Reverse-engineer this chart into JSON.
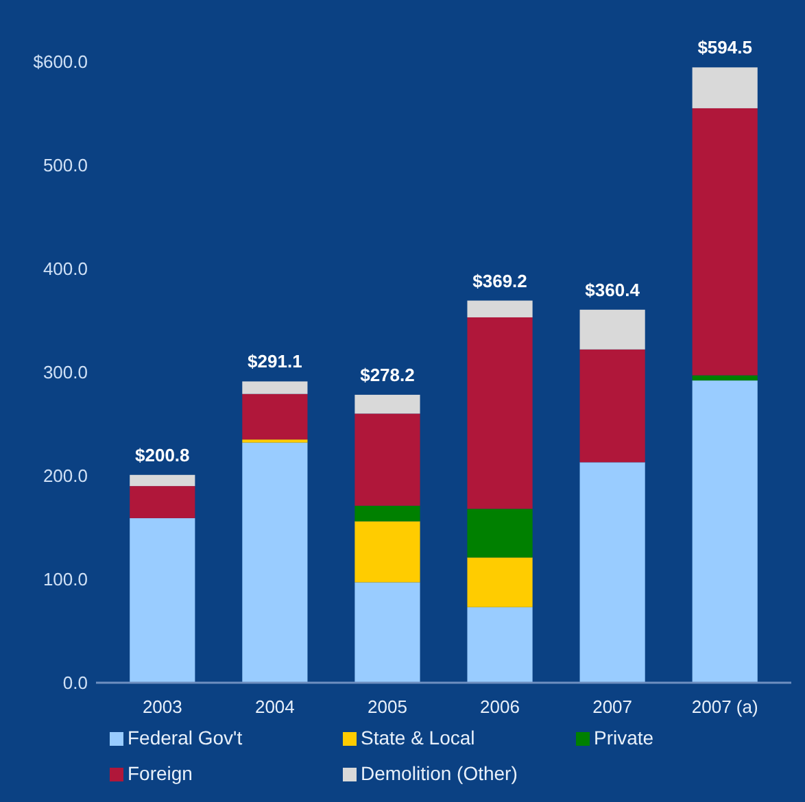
{
  "chart_data": {
    "type": "bar",
    "stacked": true,
    "categories": [
      "2003",
      "2004",
      "2005",
      "2006",
      "2007",
      "2007 (a)"
    ],
    "series": [
      {
        "name": "Federal Gov't",
        "color": "#99ccff",
        "values": [
          159,
          232,
          97,
          73,
          213,
          292
        ]
      },
      {
        "name": "State & Local",
        "color": "#ffcc00",
        "values": [
          0,
          3,
          59,
          48,
          0,
          0
        ]
      },
      {
        "name": "Private",
        "color": "#008000",
        "values": [
          0,
          0,
          15,
          47,
          0,
          5
        ]
      },
      {
        "name": "Foreign",
        "color": "#b0173a",
        "values": [
          31,
          44,
          89,
          185,
          109,
          258
        ]
      },
      {
        "name": "Demolition (Other)",
        "color": "#d9d9d9",
        "values": [
          10.8,
          12.1,
          18.2,
          16.2,
          38.4,
          39.5
        ]
      }
    ],
    "totals": [
      "$200.8",
      "$291.1",
      "$278.2",
      "$369.2",
      "$360.4",
      "$594.5"
    ],
    "ylim": [
      0,
      600
    ],
    "yticks": [
      {
        "value": 0,
        "label": "0.0"
      },
      {
        "value": 100,
        "label": "100.0"
      },
      {
        "value": 200,
        "label": "200.0"
      },
      {
        "value": 300,
        "label": "300.0"
      },
      {
        "value": 400,
        "label": "400.0"
      },
      {
        "value": 500,
        "label": "500.0"
      },
      {
        "value": 600,
        "label": "$600.0"
      }
    ],
    "grid": false,
    "legend": "bottom"
  }
}
